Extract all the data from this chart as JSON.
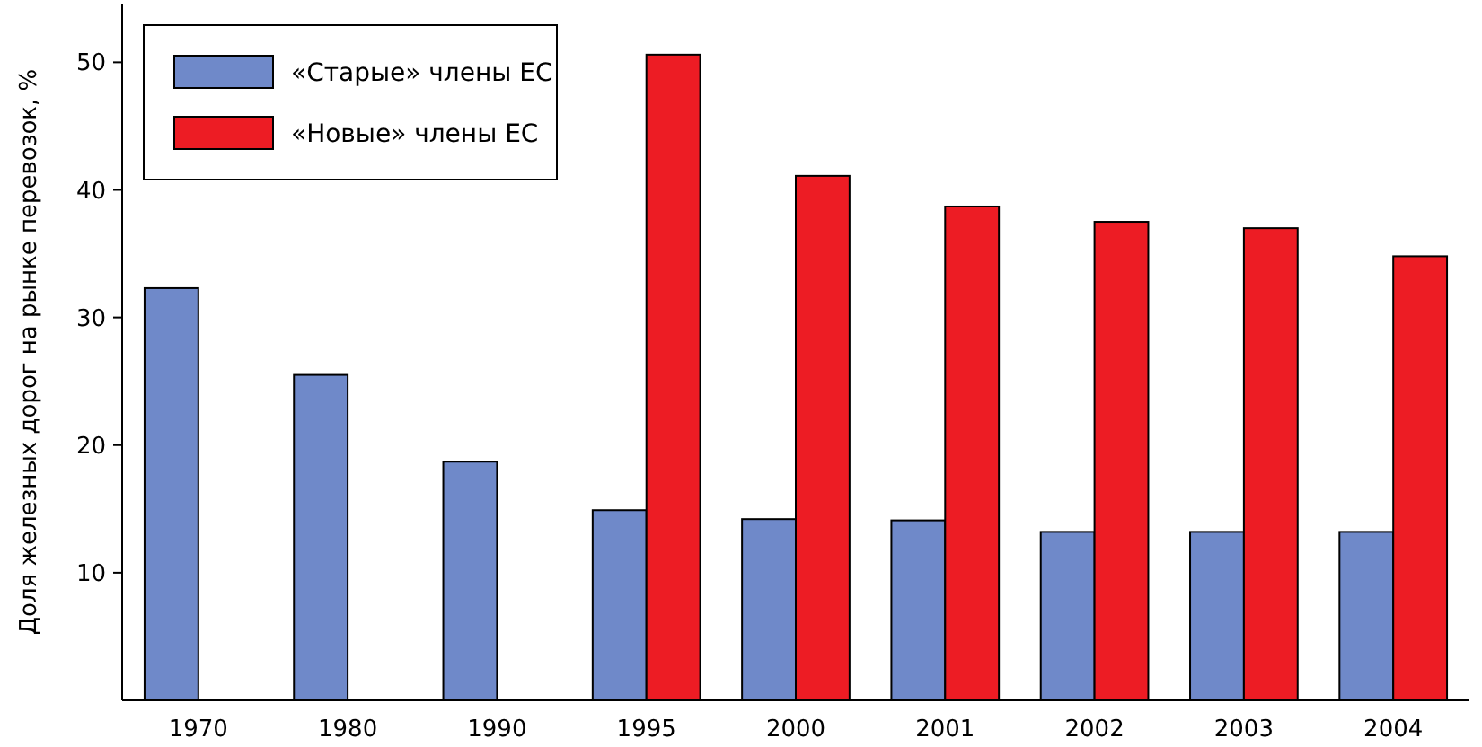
{
  "chart_data": {
    "type": "bar",
    "ylabel": "Доля железных дорог на рынке перевозок, %",
    "categories": [
      "1970",
      "1980",
      "1990",
      "1995",
      "2000",
      "2001",
      "2002",
      "2003",
      "2004"
    ],
    "series": [
      {
        "name": "«Старые» члены ЕС",
        "color": "#6f89c9",
        "values": [
          32.3,
          25.5,
          18.7,
          14.9,
          14.2,
          14.1,
          13.2,
          13.2,
          13.2
        ]
      },
      {
        "name": "«Новые» члены ЕС",
        "color": "#ed1c24",
        "values": [
          null,
          null,
          null,
          50.6,
          41.1,
          38.7,
          37.5,
          37.0,
          34.8
        ]
      }
    ],
    "ylim": [
      0,
      54.6
    ],
    "yticks": [
      10,
      20,
      30,
      40,
      50
    ],
    "legend": "top left",
    "grid": false
  }
}
